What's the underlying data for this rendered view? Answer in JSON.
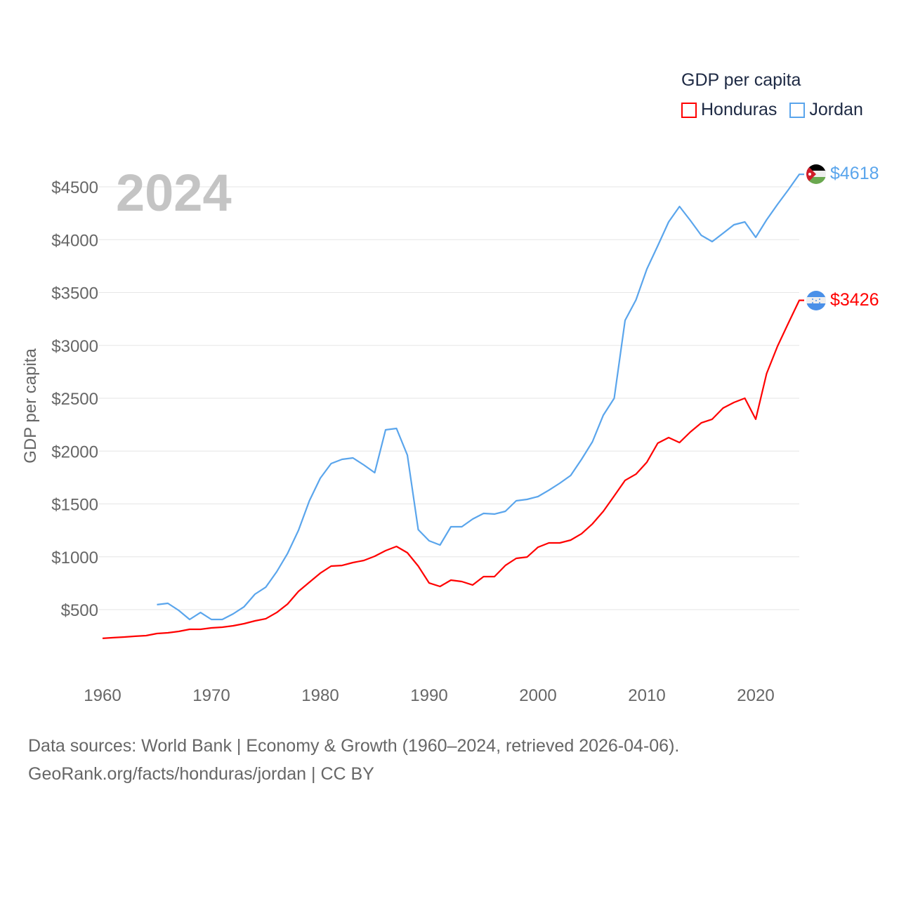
{
  "chart_data": {
    "type": "line",
    "title": "GDP per capita",
    "ylabel": "GDP per capita",
    "xlabel": "",
    "year_label": "2024",
    "xlim": [
      1960,
      2024
    ],
    "ylim": [
      0,
      4800
    ],
    "x_ticks": [
      1960,
      1970,
      1980,
      1990,
      2000,
      2010,
      2020
    ],
    "y_ticks": [
      500,
      1000,
      1500,
      2000,
      2500,
      3000,
      3500,
      4000,
      4500
    ],
    "y_tick_labels": [
      "$500",
      "$1000",
      "$1500",
      "$2000",
      "$2500",
      "$3000",
      "$3500",
      "$4000",
      "$4500"
    ],
    "grid": true,
    "legend_position": "top-right",
    "series": [
      {
        "name": "Honduras",
        "color": "#ff0000",
        "end_label": "$3426",
        "flag": "honduras-flag",
        "start_year": 1960,
        "values": [
          228,
          235,
          241,
          248,
          254,
          274,
          281,
          294,
          314,
          314,
          327,
          334,
          347,
          367,
          394,
          414,
          473,
          553,
          673,
          759,
          845,
          912,
          918,
          945,
          965,
          1005,
          1058,
          1098,
          1038,
          912,
          752,
          719,
          779,
          766,
          733,
          812,
          812,
          918,
          985,
          998,
          1091,
          1131,
          1131,
          1158,
          1218,
          1311,
          1430,
          1576,
          1723,
          1782,
          1895,
          2075,
          2128,
          2081,
          2181,
          2267,
          2301,
          2407,
          2460,
          2500,
          2301,
          2733,
          2992,
          3211,
          3426
        ]
      },
      {
        "name": "Jordan",
        "color": "#5aa5ec",
        "end_label": "$4618",
        "flag": "jordan-flag",
        "start_year": 1965,
        "values": [
          547,
          560,
          493,
          407,
          473,
          407,
          407,
          460,
          527,
          646,
          713,
          859,
          1032,
          1251,
          1530,
          1743,
          1882,
          1922,
          1935,
          1869,
          1796,
          2201,
          2214,
          1962,
          1257,
          1151,
          1111,
          1284,
          1284,
          1357,
          1410,
          1404,
          1430,
          1530,
          1543,
          1570,
          1630,
          1696,
          1769,
          1922,
          2088,
          2340,
          2500,
          3237,
          3430,
          3722,
          3942,
          4168,
          4314,
          4181,
          4041,
          3982,
          4061,
          4141,
          4168,
          4022,
          4188,
          4334,
          4473,
          4618
        ]
      }
    ]
  },
  "footer": {
    "line1": "Data sources: World Bank | Economy & Growth (1960–2024, retrieved 2026-04-06).",
    "line2": "GeoRank.org/facts/honduras/jordan | CC BY"
  }
}
